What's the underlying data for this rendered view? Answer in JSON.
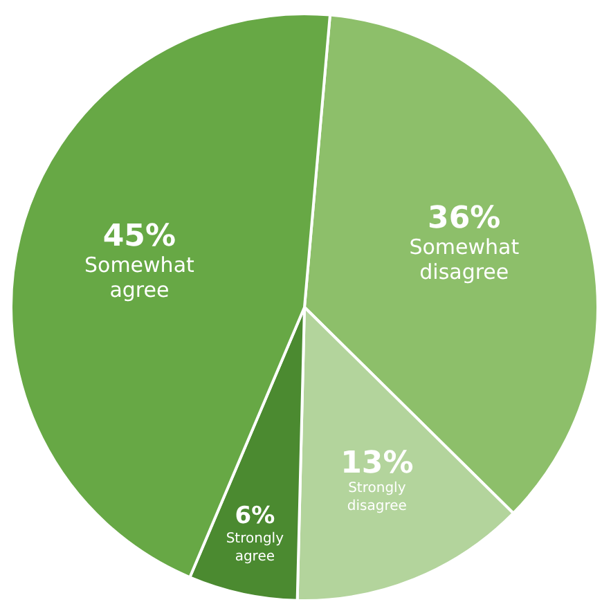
{
  "chart_data": {
    "type": "pie",
    "categories": [
      "Somewhat disagree",
      "Strongly disagree",
      "Strongly agree",
      "Somewhat agree"
    ],
    "values": [
      36,
      13,
      6,
      45
    ],
    "colors": [
      "#8dbf6a",
      "#b3d49c",
      "#4b8a30",
      "#67a845"
    ],
    "value_labels": [
      "36%",
      "13%",
      "6%",
      "45%"
    ]
  }
}
